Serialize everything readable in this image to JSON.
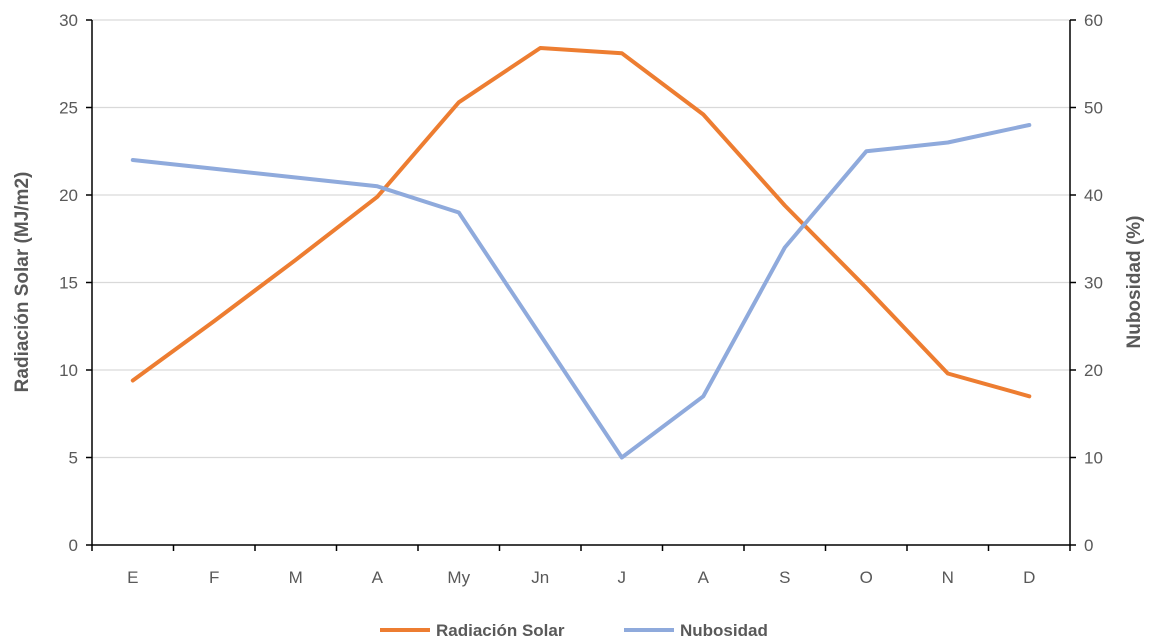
{
  "chart_data": {
    "type": "line",
    "title": "",
    "categories": [
      "E",
      "F",
      "M",
      "A",
      "My",
      "Jn",
      "J",
      "A",
      "S",
      "O",
      "N",
      "D"
    ],
    "ylabel": "Radiación Solar (MJ/m2)",
    "y2label": "Nubosidad (%)",
    "ylim": [
      0,
      30
    ],
    "y2lim": [
      0,
      60
    ],
    "yticks": [
      0,
      5,
      10,
      15,
      20,
      25,
      30
    ],
    "y2ticks": [
      0,
      10,
      20,
      30,
      40,
      50,
      60
    ],
    "grid": true,
    "legend_position": "bottom",
    "series": [
      {
        "name": "Radiación Solar",
        "axis": "left",
        "color": "#ED7D31",
        "values": [
          9.4,
          12.8,
          16.3,
          19.9,
          25.3,
          28.4,
          28.1,
          24.6,
          19.4,
          14.7,
          9.8,
          8.5
        ]
      },
      {
        "name": "Nubosidad",
        "axis": "right",
        "color": "#8FAADC",
        "values": [
          44,
          43,
          42,
          41,
          38,
          24,
          10,
          17,
          34,
          45,
          46,
          48
        ]
      }
    ]
  }
}
